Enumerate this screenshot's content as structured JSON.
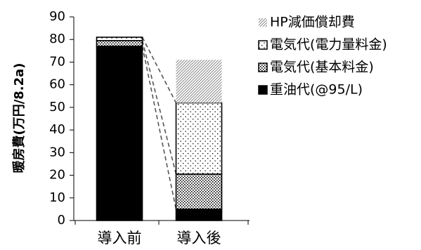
{
  "chart_data": {
    "type": "bar",
    "stacked": true,
    "categories": [
      "導入前",
      "導入後"
    ],
    "ylabel": "暖房費(万円/8.2a)",
    "ylim": [
      0,
      90
    ],
    "yticks": [
      0,
      10,
      20,
      30,
      40,
      50,
      60,
      70,
      80,
      90
    ],
    "grid": false,
    "legend_position": "right",
    "connector_lines": "dashed",
    "series": [
      {
        "name": "重油代(@95/L)",
        "values": [
          77,
          5
        ],
        "color": "#000000",
        "pattern": "solid"
      },
      {
        "name": "電気代(基本料金)",
        "values": [
          2.5,
          15.5
        ],
        "color": "#000000",
        "pattern": "dense-dots"
      },
      {
        "name": "電気代(電力量料金)",
        "values": [
          1.5,
          31.5
        ],
        "color": "#000000",
        "pattern": "sparse-dots"
      },
      {
        "name": "HP減価償却費",
        "values": [
          0,
          19
        ],
        "color": "#888888",
        "pattern": "diagonal-hatch"
      }
    ]
  }
}
